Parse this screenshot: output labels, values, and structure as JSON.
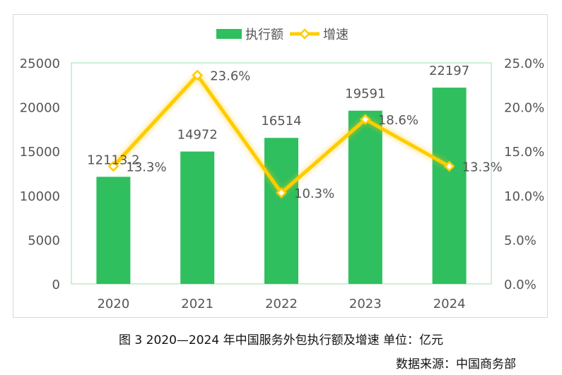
{
  "chart_data": {
    "type": "bar+line",
    "categories": [
      "2020",
      "2021",
      "2022",
      "2023",
      "2024"
    ],
    "series": [
      {
        "name": "执行额",
        "type": "bar",
        "axis": "left",
        "values": [
          12113.2,
          14972,
          16514,
          19591,
          22197
        ],
        "labels": [
          "12113.2",
          "14972",
          "16514",
          "19591",
          "22197"
        ]
      },
      {
        "name": "增速",
        "type": "line",
        "axis": "right",
        "values": [
          13.3,
          23.6,
          10.3,
          18.6,
          13.3
        ],
        "labels": [
          "13.3%",
          "23.6%",
          "10.3%",
          "18.6%",
          "13.3%"
        ]
      }
    ],
    "y_left": {
      "min": 0,
      "max": 25000,
      "ticks": [
        "0",
        "5000",
        "10000",
        "15000",
        "20000",
        "25000"
      ]
    },
    "y_right": {
      "min": 0,
      "max": 25,
      "ticks": [
        "0.0%",
        "5.0%",
        "10.0%",
        "15.0%",
        "20.0%",
        "25.0%"
      ]
    },
    "legend_position": "top-center",
    "grid": false,
    "colors": {
      "bar": "#2fbf5e",
      "line": "#ffcc00",
      "plot_border": "#9ee0a8",
      "text": "#555555"
    }
  },
  "caption": "图 3 2020—2024 年中国服务外包执行额及增速 单位：亿元",
  "source": "数据来源：中国商务部"
}
